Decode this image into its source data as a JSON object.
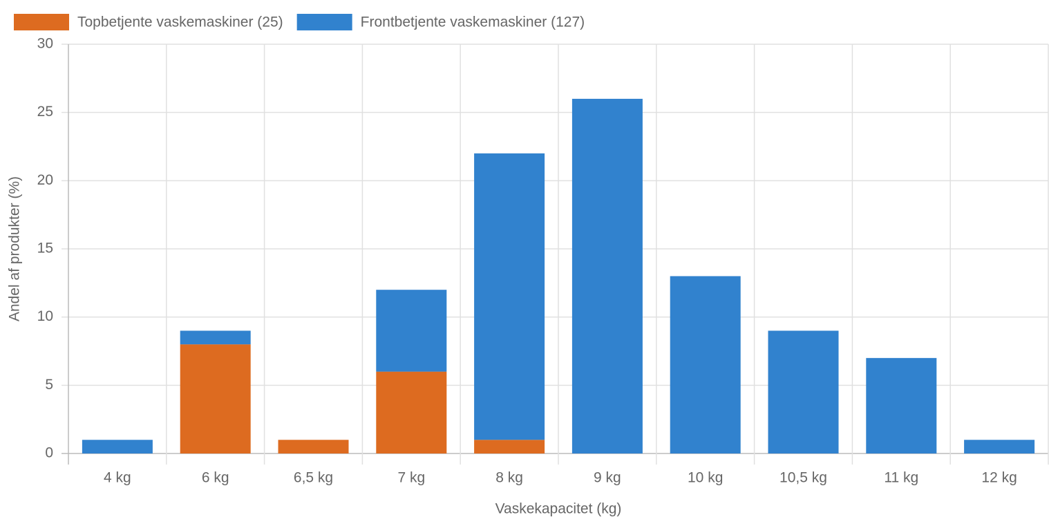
{
  "chart_data": {
    "type": "bar",
    "stacked": true,
    "x_label": "Vaskekapacitet (kg)",
    "y_label": "Andel af produkter (%)",
    "categories": [
      "4 kg",
      "6 kg",
      "6,5 kg",
      "7 kg",
      "8 kg",
      "9 kg",
      "10 kg",
      "10,5 kg",
      "11 kg",
      "12 kg"
    ],
    "series": [
      {
        "name": "Topbetjente vaskemaskiner (25)",
        "color": "#dd6b20",
        "values": [
          0,
          8,
          1,
          6,
          1,
          0,
          0,
          0,
          0,
          0
        ]
      },
      {
        "name": "Frontbetjente vaskemaskiner (127)",
        "color": "#3182ce",
        "values": [
          1,
          1,
          0,
          6,
          21,
          26,
          13,
          9,
          7,
          1
        ]
      }
    ],
    "ylim": [
      0,
      30
    ],
    "yticks": [
      0,
      5,
      10,
      15,
      20,
      25,
      30
    ],
    "grid": true,
    "legend": "top-left"
  }
}
